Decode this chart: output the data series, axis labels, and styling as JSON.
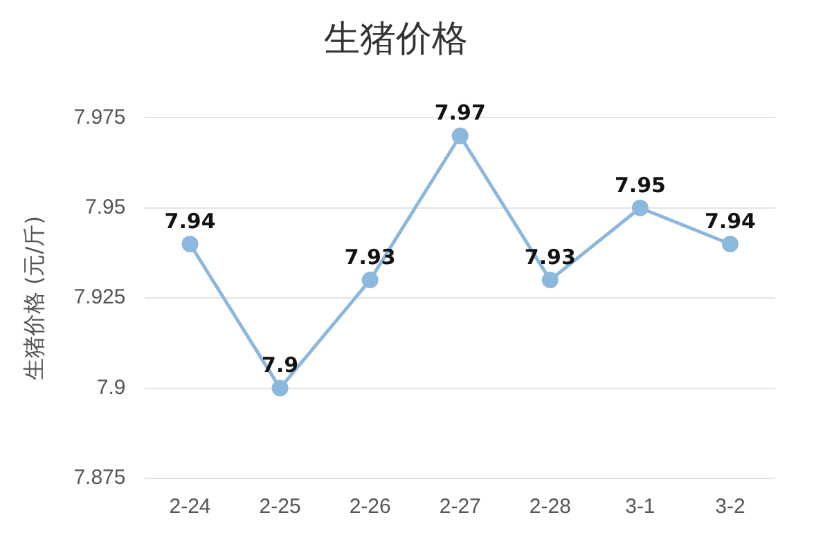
{
  "chart_data": {
    "type": "line",
    "title": "生猪价格",
    "ylabel": "生猪价格 (元/斤)",
    "categories": [
      "2-24",
      "2-25",
      "2-26",
      "2-27",
      "2-28",
      "3-1",
      "3-2"
    ],
    "series": [
      {
        "color": "#8db8de",
        "values": [
          7.94,
          7.9,
          7.93,
          7.97,
          7.93,
          7.95,
          7.94
        ]
      }
    ],
    "ylim": [
      7.875,
      7.975
    ],
    "yticks": [
      7.875,
      7.9,
      7.925,
      7.95,
      7.975
    ],
    "grid": "y",
    "legend": false,
    "marker": "circle",
    "line_style": "solid",
    "data_labels": true
  }
}
